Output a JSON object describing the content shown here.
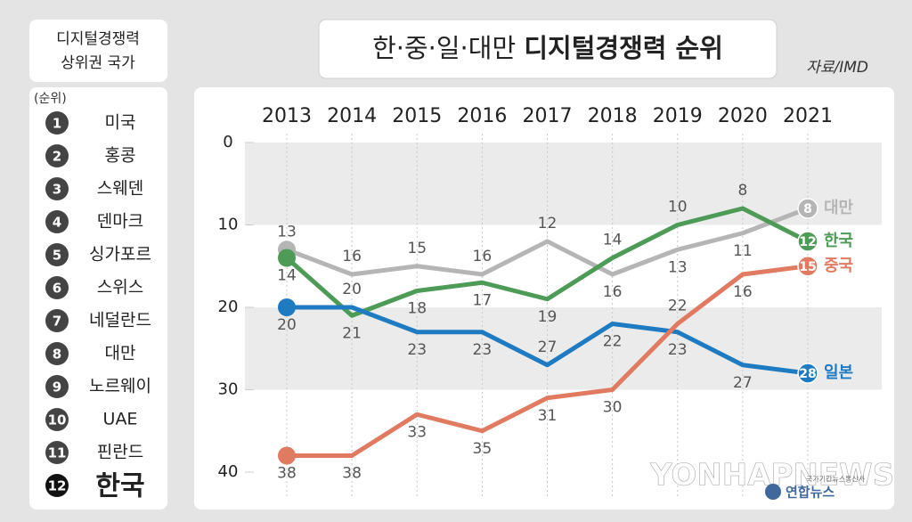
{
  "chart_data": {
    "type": "line",
    "title": "한·중·일·대만",
    "title_bold": "디지털경쟁력 순위",
    "source": "자료/IMD",
    "categories": [
      "2013",
      "2014",
      "2015",
      "2016",
      "2017",
      "2018",
      "2019",
      "2020",
      "2021"
    ],
    "series": [
      {
        "name": "대만",
        "color": "#b5b5b5",
        "values": [
          13,
          16,
          15,
          16,
          12,
          16,
          13,
          11,
          8
        ]
      },
      {
        "name": "한국",
        "color": "#4e9a57",
        "values": [
          14,
          21,
          18,
          17,
          19,
          14,
          10,
          8,
          12
        ]
      },
      {
        "name": "일본",
        "color": "#1f7bc1",
        "values": [
          20,
          20,
          23,
          23,
          27,
          22,
          23,
          27,
          28
        ]
      },
      {
        "name": "중국",
        "color": "#e07b62",
        "values": [
          38,
          38,
          33,
          35,
          31,
          30,
          22,
          16,
          15
        ]
      }
    ],
    "ylim": [
      40,
      0
    ],
    "yticks": [
      0,
      10,
      20,
      30,
      40
    ],
    "grid_bands": true
  },
  "ranking": {
    "title": [
      "디지털경쟁력",
      "상위권 국가"
    ],
    "note": "(순위)",
    "items": [
      {
        "rank": 1,
        "name": "미국"
      },
      {
        "rank": 2,
        "name": "홍콩"
      },
      {
        "rank": 3,
        "name": "스웨덴"
      },
      {
        "rank": 4,
        "name": "덴마크"
      },
      {
        "rank": 5,
        "name": "싱가포르"
      },
      {
        "rank": 6,
        "name": "스위스"
      },
      {
        "rank": 7,
        "name": "네덜란드"
      },
      {
        "rank": 8,
        "name": "대만"
      },
      {
        "rank": 9,
        "name": "노르웨이"
      },
      {
        "rank": 10,
        "name": "UAE"
      },
      {
        "rank": 11,
        "name": "핀란드"
      },
      {
        "rank": 12,
        "name": "한국"
      }
    ]
  },
  "watermark": {
    "brand": "YONHAPNEWS",
    "tagline": "국가기간뉴스통신사",
    "logo": "연합뉴스"
  }
}
